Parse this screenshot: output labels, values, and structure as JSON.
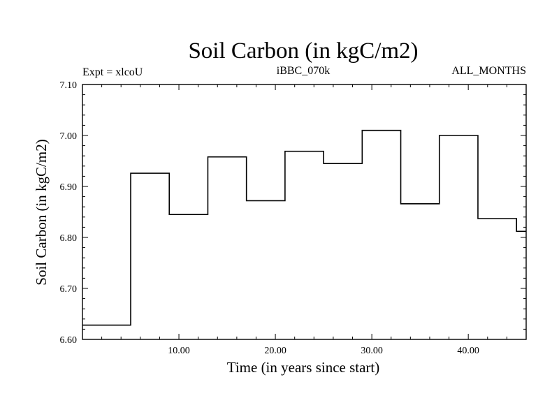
{
  "chart_data": {
    "type": "line",
    "style": "step",
    "title": "Soil Carbon (in kgC/m2)",
    "subtitle_left": "Expt = xlcoU",
    "subtitle_center": "iBBC_070k",
    "subtitle_right": "ALL_MONTHS",
    "xlabel": "Time (in years since start)",
    "ylabel": "Soil Carbon (in kgC/m2)",
    "xlim": [
      0,
      46
    ],
    "ylim": [
      6.6,
      7.1
    ],
    "x_ticks": [
      10,
      20,
      30,
      40
    ],
    "x_tick_labels": [
      "10.00",
      "20.00",
      "30.00",
      "40.00"
    ],
    "y_ticks": [
      6.6,
      6.7,
      6.8,
      6.9,
      7.0,
      7.1
    ],
    "y_tick_labels": [
      "6.60",
      "6.70",
      "6.80",
      "6.90",
      "7.00",
      "7.10"
    ],
    "series": [
      {
        "name": "Soil Carbon",
        "color": "#000000",
        "x": [
          0,
          5,
          9,
          13,
          17,
          21,
          25,
          29,
          33,
          37,
          41,
          45,
          46
        ],
        "values": [
          6.628,
          6.926,
          6.845,
          6.958,
          6.872,
          6.969,
          6.945,
          7.01,
          6.866,
          7.0,
          6.837,
          6.812,
          6.812
        ]
      }
    ]
  }
}
